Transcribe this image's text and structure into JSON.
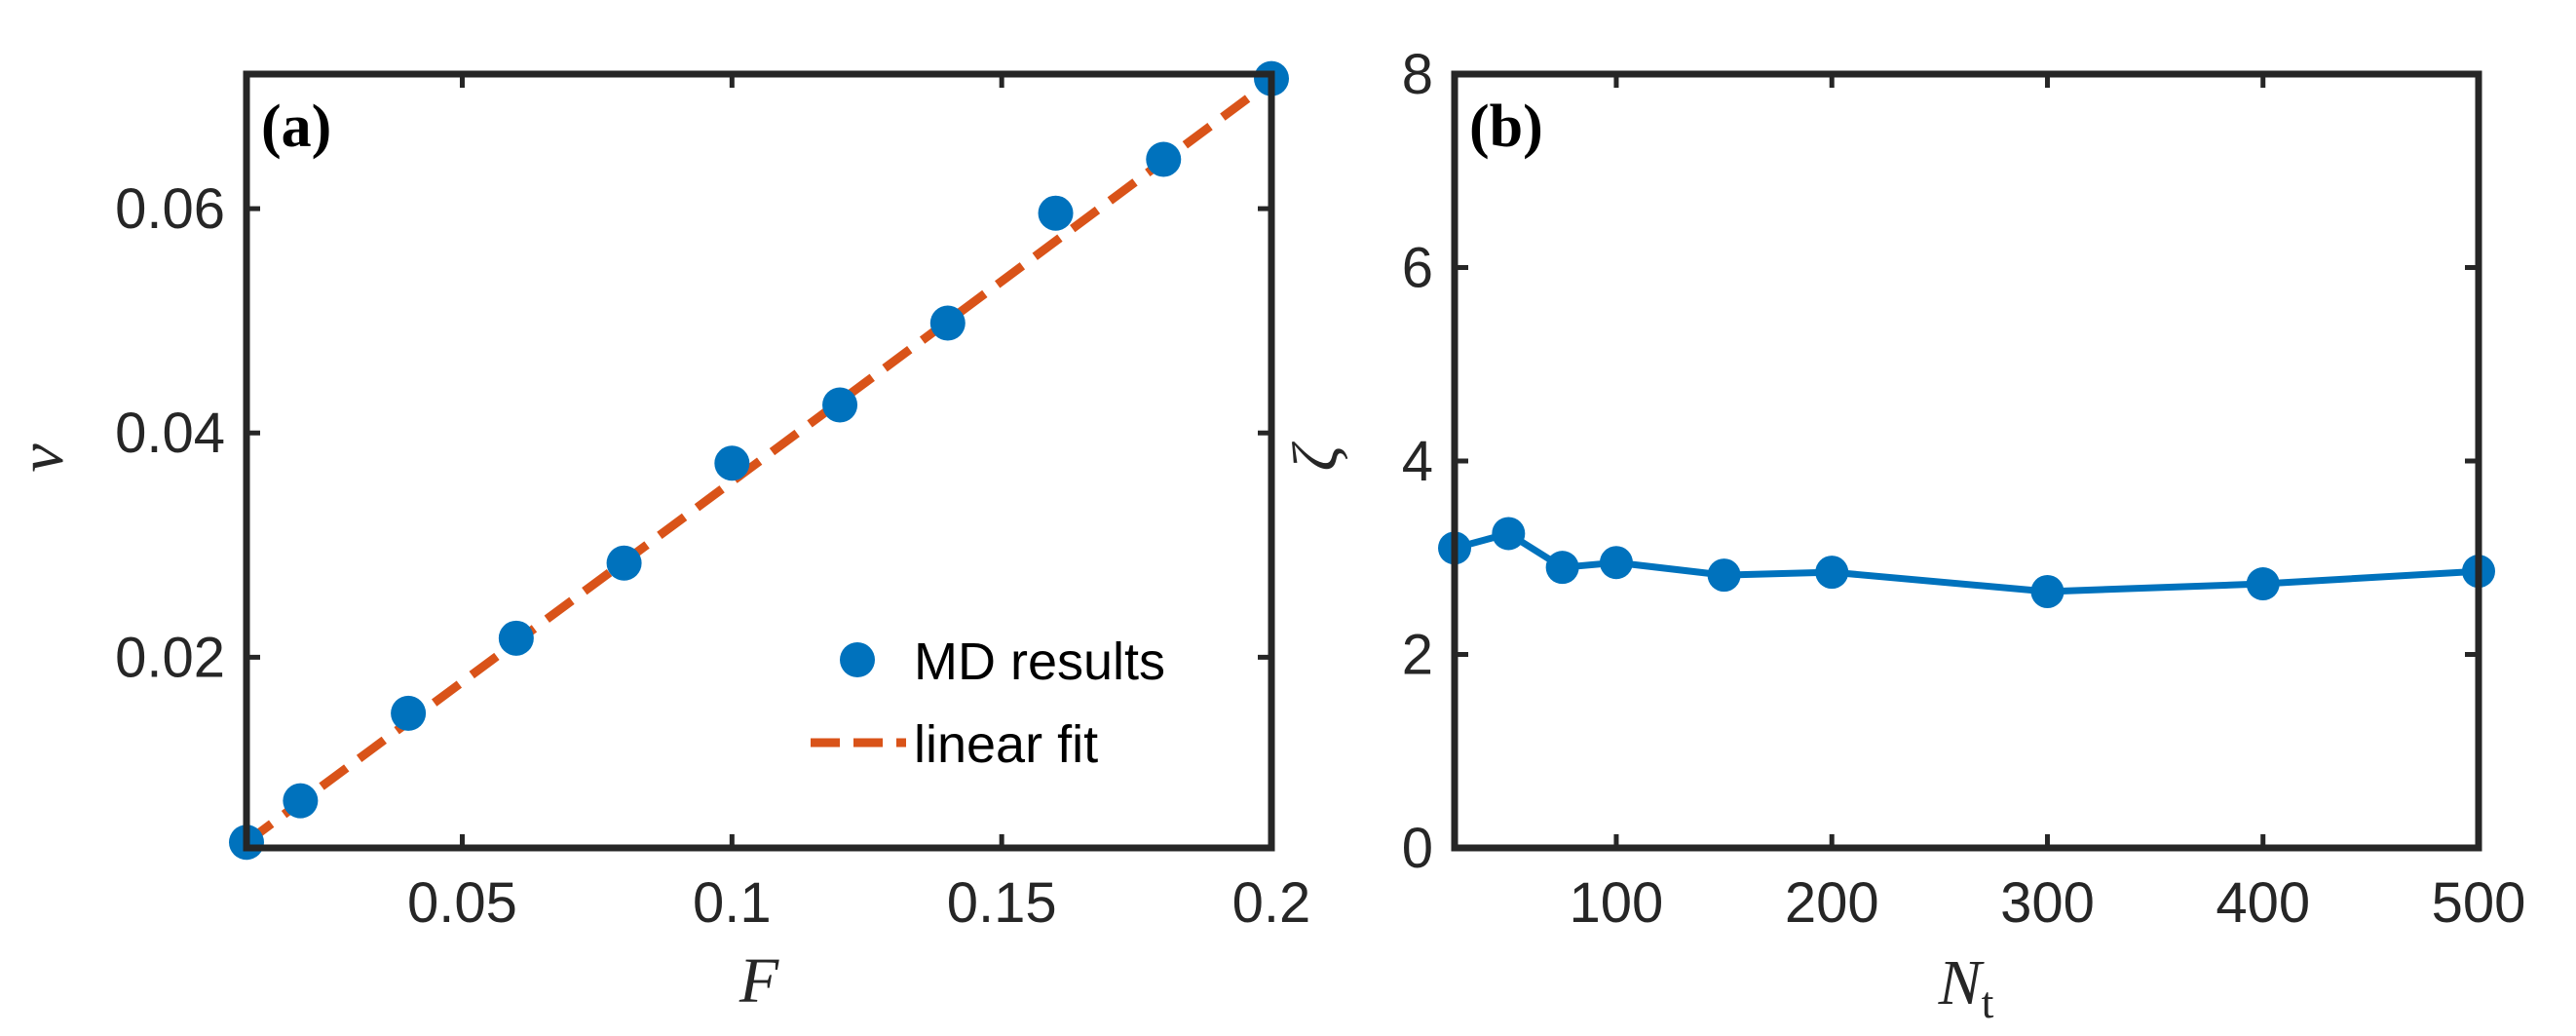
{
  "chart_data": [
    {
      "type": "scatter",
      "panel_label": "(a)",
      "xlabel": "F",
      "ylabel": "v",
      "xlim": [
        0.01,
        0.2
      ],
      "ylim": [
        0.003,
        0.072
      ],
      "xticks": [
        0.05,
        0.1,
        0.15,
        0.2
      ],
      "xtick_labels": [
        "0.05",
        "0.1",
        "0.15",
        "0.2"
      ],
      "yticks": [
        0.02,
        0.04,
        0.06
      ],
      "ytick_labels": [
        "0.02",
        "0.04",
        "0.06"
      ],
      "legend": {
        "position": "bottom-right",
        "entries": [
          "MD results",
          "linear fit"
        ]
      },
      "series": [
        {
          "name": "MD results",
          "style": "markers",
          "color": "#0072BD",
          "x": [
            0.01,
            0.02,
            0.04,
            0.06,
            0.08,
            0.1,
            0.12,
            0.14,
            0.16,
            0.18,
            0.2
          ],
          "y": [
            0.0035,
            0.0072,
            0.015,
            0.0217,
            0.0284,
            0.0373,
            0.0425,
            0.0498,
            0.0596,
            0.0644,
            0.0716
          ]
        },
        {
          "name": "linear fit",
          "style": "dashed",
          "color": "#D95319",
          "x": [
            0.01,
            0.2
          ],
          "y": [
            0.0035,
            0.0714
          ]
        }
      ]
    },
    {
      "type": "line",
      "panel_label": "(b)",
      "xlabel": "N",
      "xlabel_sub": "t",
      "ylabel": "ζ",
      "xlim": [
        25,
        500
      ],
      "ylim": [
        0,
        8
      ],
      "xticks": [
        100,
        200,
        300,
        400,
        500
      ],
      "xtick_labels": [
        "100",
        "200",
        "300",
        "400",
        "500"
      ],
      "yticks": [
        0,
        2,
        4,
        6,
        8
      ],
      "ytick_labels": [
        "0",
        "2",
        "4",
        "6",
        "8"
      ],
      "series": [
        {
          "name": "zeta",
          "style": "line-markers",
          "color": "#0072BD",
          "x": [
            25,
            50,
            75,
            100,
            150,
            200,
            300,
            400,
            500
          ],
          "y": [
            3.1,
            3.25,
            2.9,
            2.95,
            2.82,
            2.85,
            2.65,
            2.73,
            2.86
          ]
        }
      ]
    }
  ]
}
